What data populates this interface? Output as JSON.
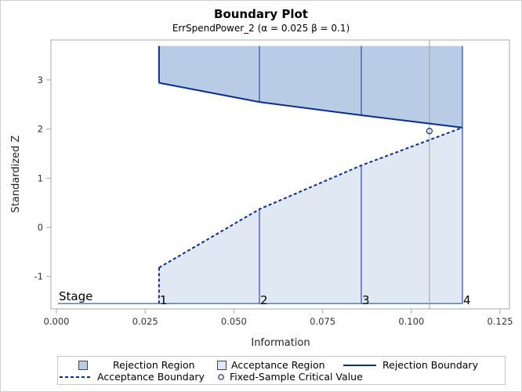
{
  "chart_data": {
    "type": "area",
    "title": "Boundary Plot",
    "subtitle": "ErrSpendPower_2 (α = 0.025  β = 0.1)",
    "xlabel": "Information",
    "ylabel": "Standardized Z",
    "xlim": [
      0.0,
      0.127
    ],
    "ylim": [
      -1.65,
      3.8
    ],
    "x_ticks": [
      "0.000",
      "0.025",
      "0.050",
      "0.075",
      "0.100",
      "0.125"
    ],
    "y_ticks": [
      "-1",
      "0",
      "1",
      "2",
      "3"
    ],
    "stage_label": "Stage",
    "stages": [
      1,
      2,
      3,
      4
    ],
    "information": [
      0.0289,
      0.0572,
      0.0859,
      0.1144
    ],
    "series": [
      {
        "name": "Rejection Boundary",
        "values": [
          2.94,
          2.55,
          2.28,
          2.03
        ],
        "style": "solid"
      },
      {
        "name": "Acceptance Boundary",
        "values": [
          -0.82,
          0.37,
          1.26,
          2.03
        ],
        "style": "dashed"
      }
    ],
    "fixed_sample_critical_value": {
      "information": 0.1051,
      "z": 1.96
    },
    "legend_position": "bottom",
    "grid": false
  },
  "colors": {
    "rejection_fill": "#b8cde5",
    "acceptance_fill": "#dfe8f3",
    "boundary_line": "#0a2d8f",
    "stage_line": "#2a4fb0",
    "fixed_line": "#a0a0a0"
  },
  "legend": {
    "items": [
      {
        "label": "Rejection Region"
      },
      {
        "label": "Acceptance Region"
      },
      {
        "label": "Rejection Boundary"
      },
      {
        "label": "Acceptance Boundary"
      },
      {
        "label": "Fixed-Sample Critical Value"
      }
    ]
  }
}
